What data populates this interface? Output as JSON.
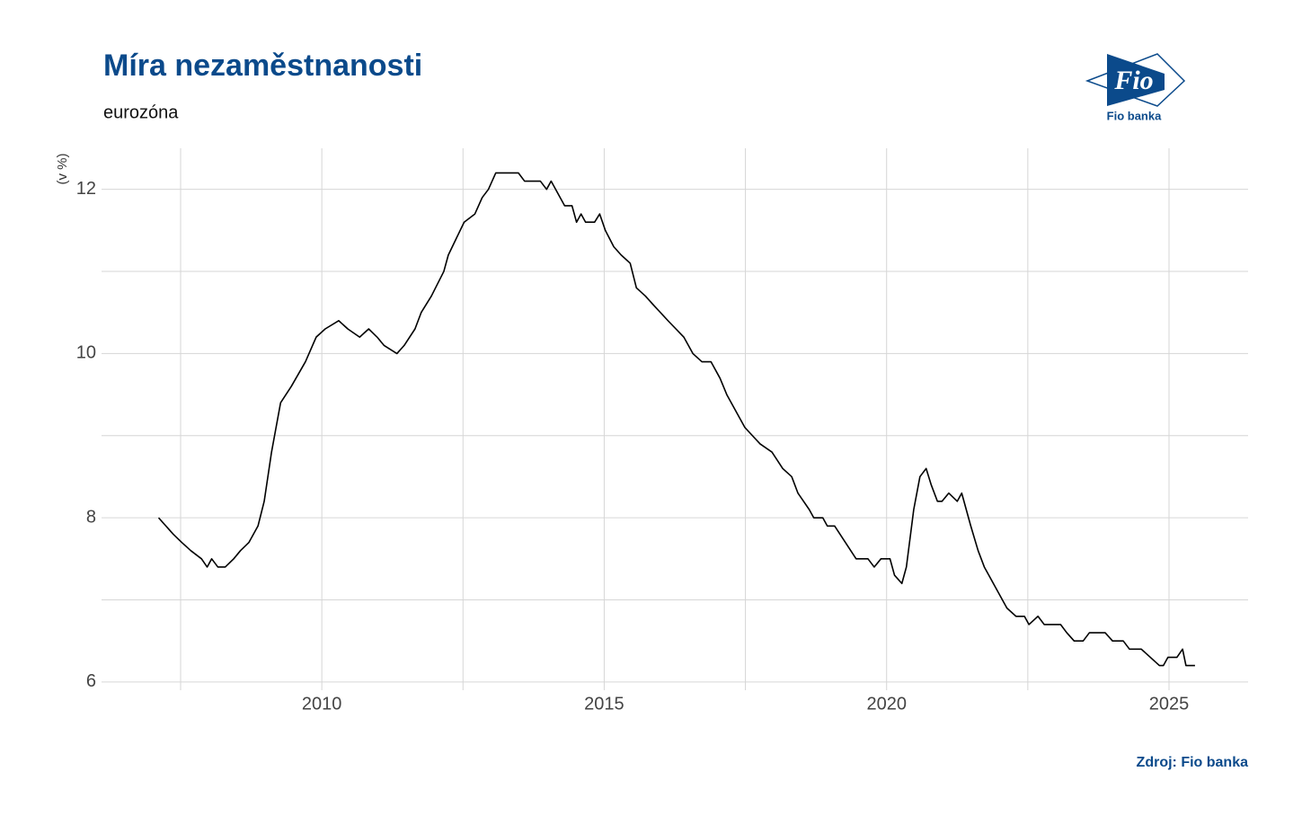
{
  "chart_data": {
    "type": "line",
    "title": "Míra nezaměstnanosti",
    "subtitle": "eurozóna",
    "y_label": "(v %)",
    "source": "Zdroj: Fio banka",
    "series": [
      {
        "color": "#000000",
        "x": [
          2007.11,
          2007.37,
          2007.52,
          2007.68,
          2007.87,
          2007.97,
          2008.05,
          2008.16,
          2008.29,
          2008.44,
          2008.56,
          2008.71,
          2008.87,
          2008.98,
          2009.11,
          2009.19,
          2009.27,
          2009.46,
          2009.71,
          2009.9,
          2010.06,
          2010.3,
          2010.46,
          2010.67,
          2010.83,
          2010.98,
          2011.1,
          2011.33,
          2011.46,
          2011.65,
          2011.76,
          2011.94,
          2012.16,
          2012.24,
          2012.52,
          2012.71,
          2012.84,
          2012.95,
          2013.08,
          2013.48,
          2013.59,
          2013.87,
          2013.98,
          2014.06,
          2014.3,
          2014.43,
          2014.51,
          2014.59,
          2014.67,
          2014.83,
          2014.92,
          2015.02,
          2015.17,
          2015.3,
          2015.46,
          2015.57,
          2015.73,
          2015.86,
          2016.13,
          2016.41,
          2016.57,
          2016.73,
          2016.89,
          2017.05,
          2017.17,
          2017.33,
          2017.49,
          2017.76,
          2017.97,
          2018.16,
          2018.32,
          2018.43,
          2018.63,
          2018.71,
          2018.87,
          2018.95,
          2019.08,
          2019.27,
          2019.46,
          2019.67,
          2019.78,
          2019.9,
          2020.06,
          2020.14,
          2020.27,
          2020.35,
          2020.48,
          2020.59,
          2020.7,
          2020.79,
          2020.9,
          2020.98,
          2021.1,
          2021.25,
          2021.33,
          2021.49,
          2021.62,
          2021.73,
          2021.97,
          2022.13,
          2022.29,
          2022.44,
          2022.52,
          2022.68,
          2022.79,
          2023.08,
          2023.19,
          2023.32,
          2023.48,
          2023.59,
          2023.87,
          2024.0,
          2024.19,
          2024.3,
          2024.51,
          2024.67,
          2024.83,
          2024.9,
          2024.98,
          2025.14,
          2025.24,
          2025.3,
          2025.46
        ],
        "values": [
          8.0,
          7.8,
          7.7,
          7.6,
          7.5,
          7.4,
          7.5,
          7.4,
          7.4,
          7.5,
          7.6,
          7.7,
          7.9,
          8.2,
          8.8,
          9.1,
          9.4,
          9.6,
          9.9,
          10.2,
          10.3,
          10.4,
          10.3,
          10.2,
          10.3,
          10.2,
          10.1,
          10.0,
          10.1,
          10.3,
          10.5,
          10.7,
          11.0,
          11.2,
          11.6,
          11.7,
          11.9,
          12.0,
          12.2,
          12.2,
          12.1,
          12.1,
          12.0,
          12.1,
          11.8,
          11.8,
          11.6,
          11.7,
          11.6,
          11.6,
          11.7,
          11.5,
          11.3,
          11.2,
          11.1,
          10.8,
          10.7,
          10.6,
          10.4,
          10.2,
          10.0,
          9.9,
          9.9,
          9.7,
          9.5,
          9.3,
          9.1,
          8.9,
          8.8,
          8.6,
          8.5,
          8.3,
          8.1,
          8.0,
          8.0,
          7.9,
          7.9,
          7.7,
          7.5,
          7.5,
          7.4,
          7.5,
          7.5,
          7.3,
          7.2,
          7.4,
          8.1,
          8.5,
          8.6,
          8.4,
          8.2,
          8.2,
          8.3,
          8.2,
          8.3,
          7.9,
          7.6,
          7.4,
          7.1,
          6.9,
          6.8,
          6.8,
          6.7,
          6.8,
          6.7,
          6.7,
          6.6,
          6.5,
          6.5,
          6.6,
          6.6,
          6.5,
          6.5,
          6.4,
          6.4,
          6.3,
          6.2,
          6.2,
          6.3,
          6.3,
          6.4,
          6.2,
          6.2
        ]
      }
    ],
    "xlim": [
      2006.1,
      2026.4
    ],
    "xticks": [
      2010,
      2015,
      2020,
      2025
    ],
    "xminor": [
      2007.5,
      2012.5,
      2017.5,
      2022.5
    ],
    "ylim": [
      5.9,
      12.5
    ],
    "yticks": [
      6,
      8,
      10,
      12
    ],
    "yminor": [
      7,
      9,
      11
    ],
    "grid": true
  },
  "logo": {
    "mark": "Fio",
    "name": "Fio banka"
  }
}
